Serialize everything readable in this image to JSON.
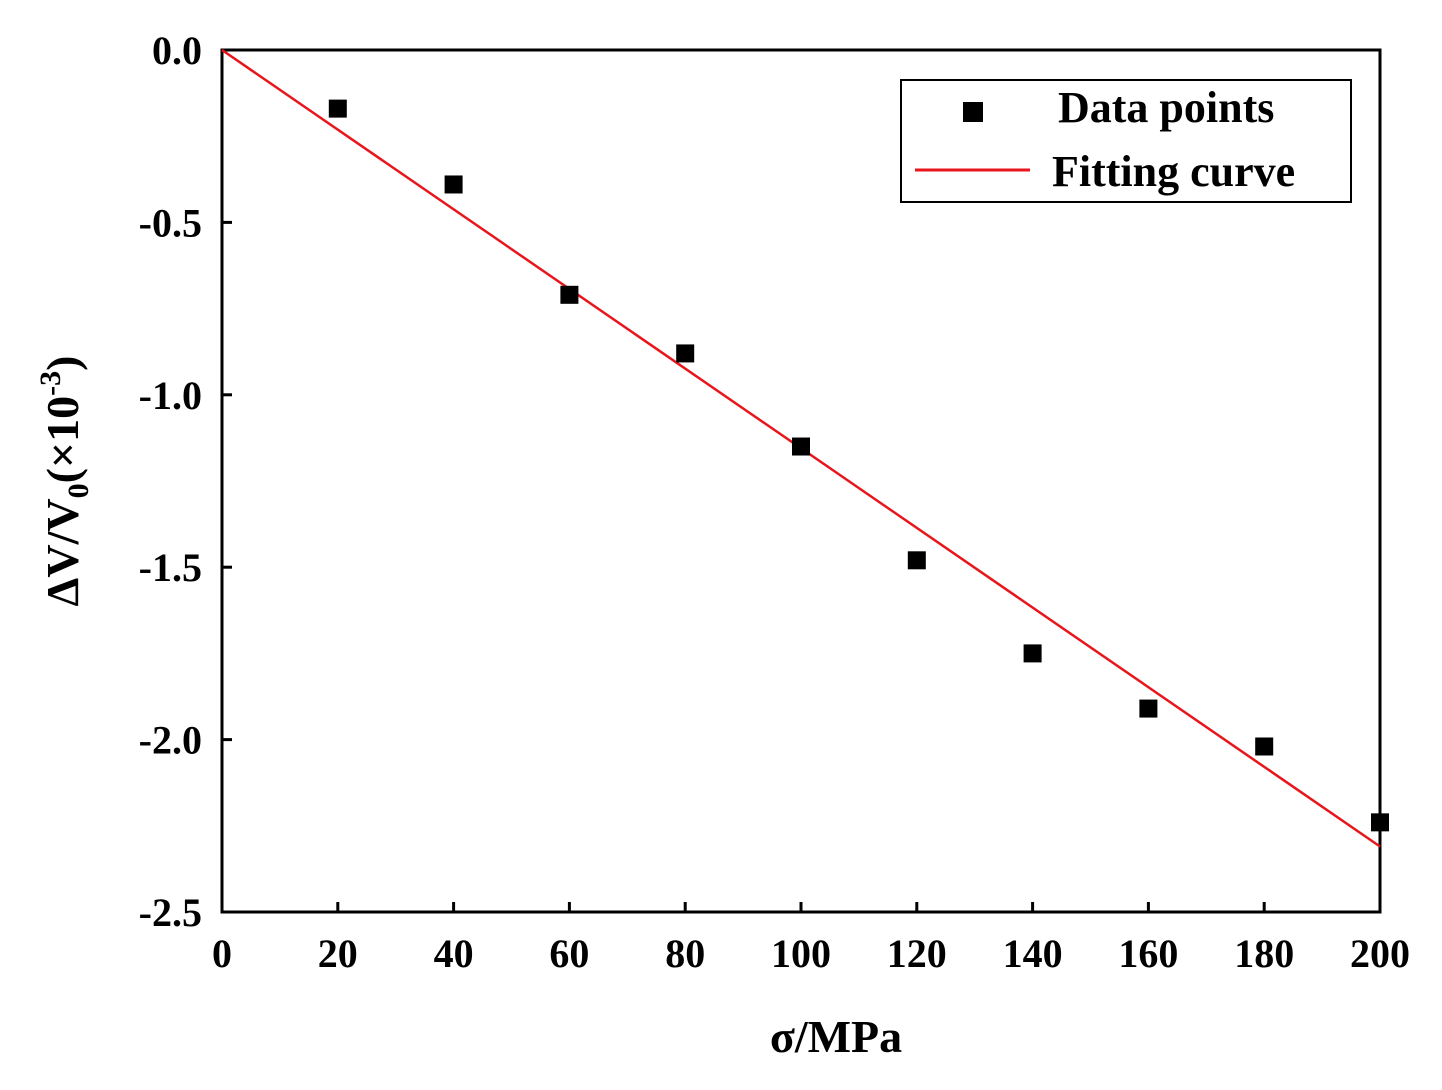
{
  "chart_data": {
    "type": "scatter",
    "title": "",
    "xlabel": "σ/MPa",
    "ylabel": {
      "prefix": "ΔV/V",
      "sub": "0",
      "mid": "(×10",
      "sup": "-3",
      "suffix": ")"
    },
    "xlim": [
      0,
      200
    ],
    "ylim": [
      -2.5,
      0.0
    ],
    "xticks": [
      0,
      20,
      40,
      60,
      80,
      100,
      120,
      140,
      160,
      180,
      200
    ],
    "xtick_labels": [
      "0",
      "20",
      "40",
      "60",
      "80",
      "100",
      "120",
      "140",
      "160",
      "180",
      "200"
    ],
    "yticks": [
      0.0,
      -0.5,
      -1.0,
      -1.5,
      -2.0,
      -2.5
    ],
    "ytick_labels": [
      "0.0",
      "-0.5",
      "-1.0",
      "-1.5",
      "-2.0",
      "-2.5"
    ],
    "grid": false,
    "legend_position": "top-right",
    "series": [
      {
        "name": "Data points",
        "kind": "scatter",
        "color": "#000000",
        "marker": "square",
        "x": [
          20,
          40,
          60,
          80,
          100,
          120,
          140,
          160,
          180,
          200
        ],
        "y": [
          -0.17,
          -0.39,
          -0.71,
          -0.88,
          -1.15,
          -1.48,
          -1.75,
          -1.91,
          -2.02,
          -2.24
        ]
      },
      {
        "name": "Fitting curve",
        "kind": "line",
        "color": "#e8161b",
        "x": [
          0,
          200
        ],
        "y": [
          0.0,
          -2.31
        ]
      }
    ]
  }
}
